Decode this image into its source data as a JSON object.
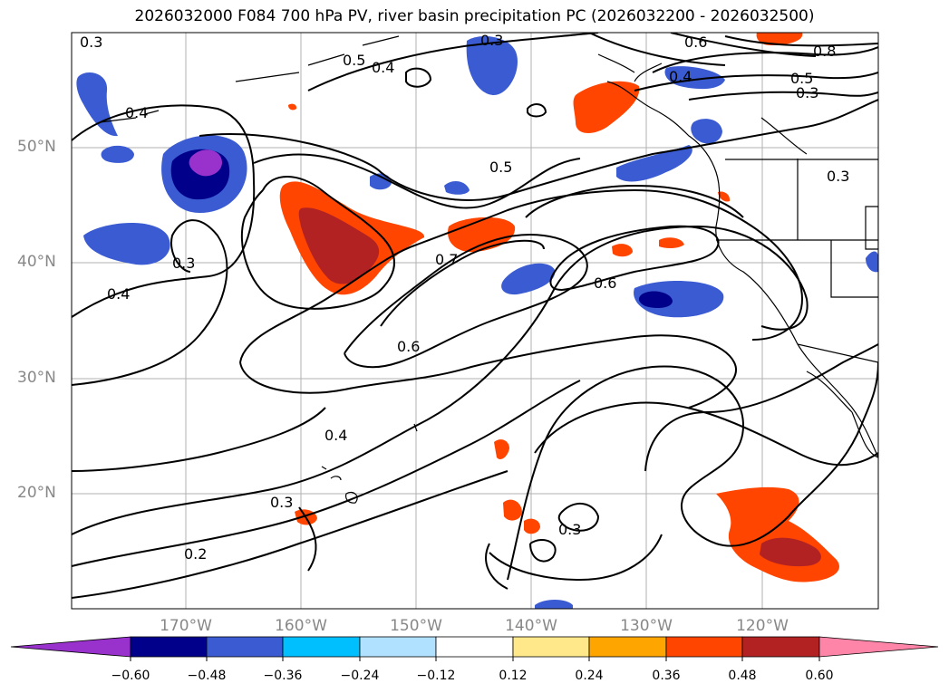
{
  "title": "2026032000 F084 700 hPa PV, river basin precipitation PC (2026032200 - 2026032500)",
  "lat_labels": [
    "50°N",
    "40°N",
    "30°N",
    "20°N"
  ],
  "lon_labels": [
    "170°W",
    "160°W",
    "150°W",
    "140°W",
    "130°W",
    "120°W"
  ],
  "contour_labels": [
    "0.3",
    "0.3",
    "0.4",
    "0.5",
    "0.4",
    "0.6",
    "0.8",
    "0.5",
    "0.3",
    "0.4",
    "0.3",
    "0.5",
    "0.3",
    "0.4",
    "0.7",
    "0.6",
    "0.6",
    "0.4",
    "0.3",
    "0.2",
    "0.3"
  ],
  "colorbar": {
    "ticks": [
      "−0.60",
      "−0.48",
      "−0.36",
      "−0.24",
      "−0.12",
      "0.12",
      "0.24",
      "0.36",
      "0.48",
      "0.60"
    ],
    "colors": [
      "#9932cc",
      "#00008b",
      "#3a5bd1",
      "#00bfff",
      "#b0e2ff",
      "#ffffff",
      "#ffe88a",
      "#ffa500",
      "#ff4500",
      "#b22222",
      "#ff85a8"
    ]
  }
}
